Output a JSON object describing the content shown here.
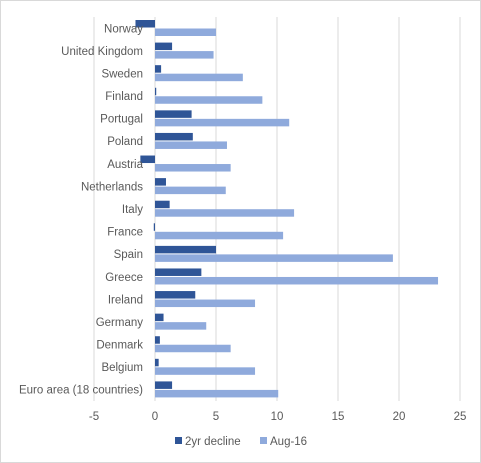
{
  "chart_data": {
    "type": "bar",
    "orientation": "horizontal",
    "title": "",
    "xlabel": "",
    "ylabel": "",
    "xlim": [
      -5,
      25
    ],
    "x_ticks": [
      -5,
      0,
      5,
      10,
      15,
      20,
      25
    ],
    "grid": true,
    "legend_position": "bottom",
    "categories": [
      "Norway",
      "United Kingdom",
      "Sweden",
      "Finland",
      "Portugal",
      "Poland",
      "Austria",
      "Netherlands",
      "Italy",
      "France",
      "Spain",
      "Greece",
      "Ireland",
      "Germany",
      "Denmark",
      "Belgium",
      "Euro area (18 countries)"
    ],
    "series": [
      {
        "name": "2yr decline",
        "color": "#2f5597",
        "values": [
          -1.6,
          1.4,
          0.5,
          0.1,
          3.0,
          3.1,
          -1.2,
          0.9,
          1.2,
          -0.1,
          5.0,
          3.8,
          3.3,
          0.7,
          0.4,
          0.3,
          1.4
        ]
      },
      {
        "name": "Aug-16",
        "color": "#8faadc",
        "values": [
          5.0,
          4.8,
          7.2,
          8.8,
          11.0,
          5.9,
          6.2,
          5.8,
          11.4,
          10.5,
          19.5,
          23.2,
          8.2,
          4.2,
          6.2,
          8.2,
          10.1
        ]
      }
    ]
  }
}
